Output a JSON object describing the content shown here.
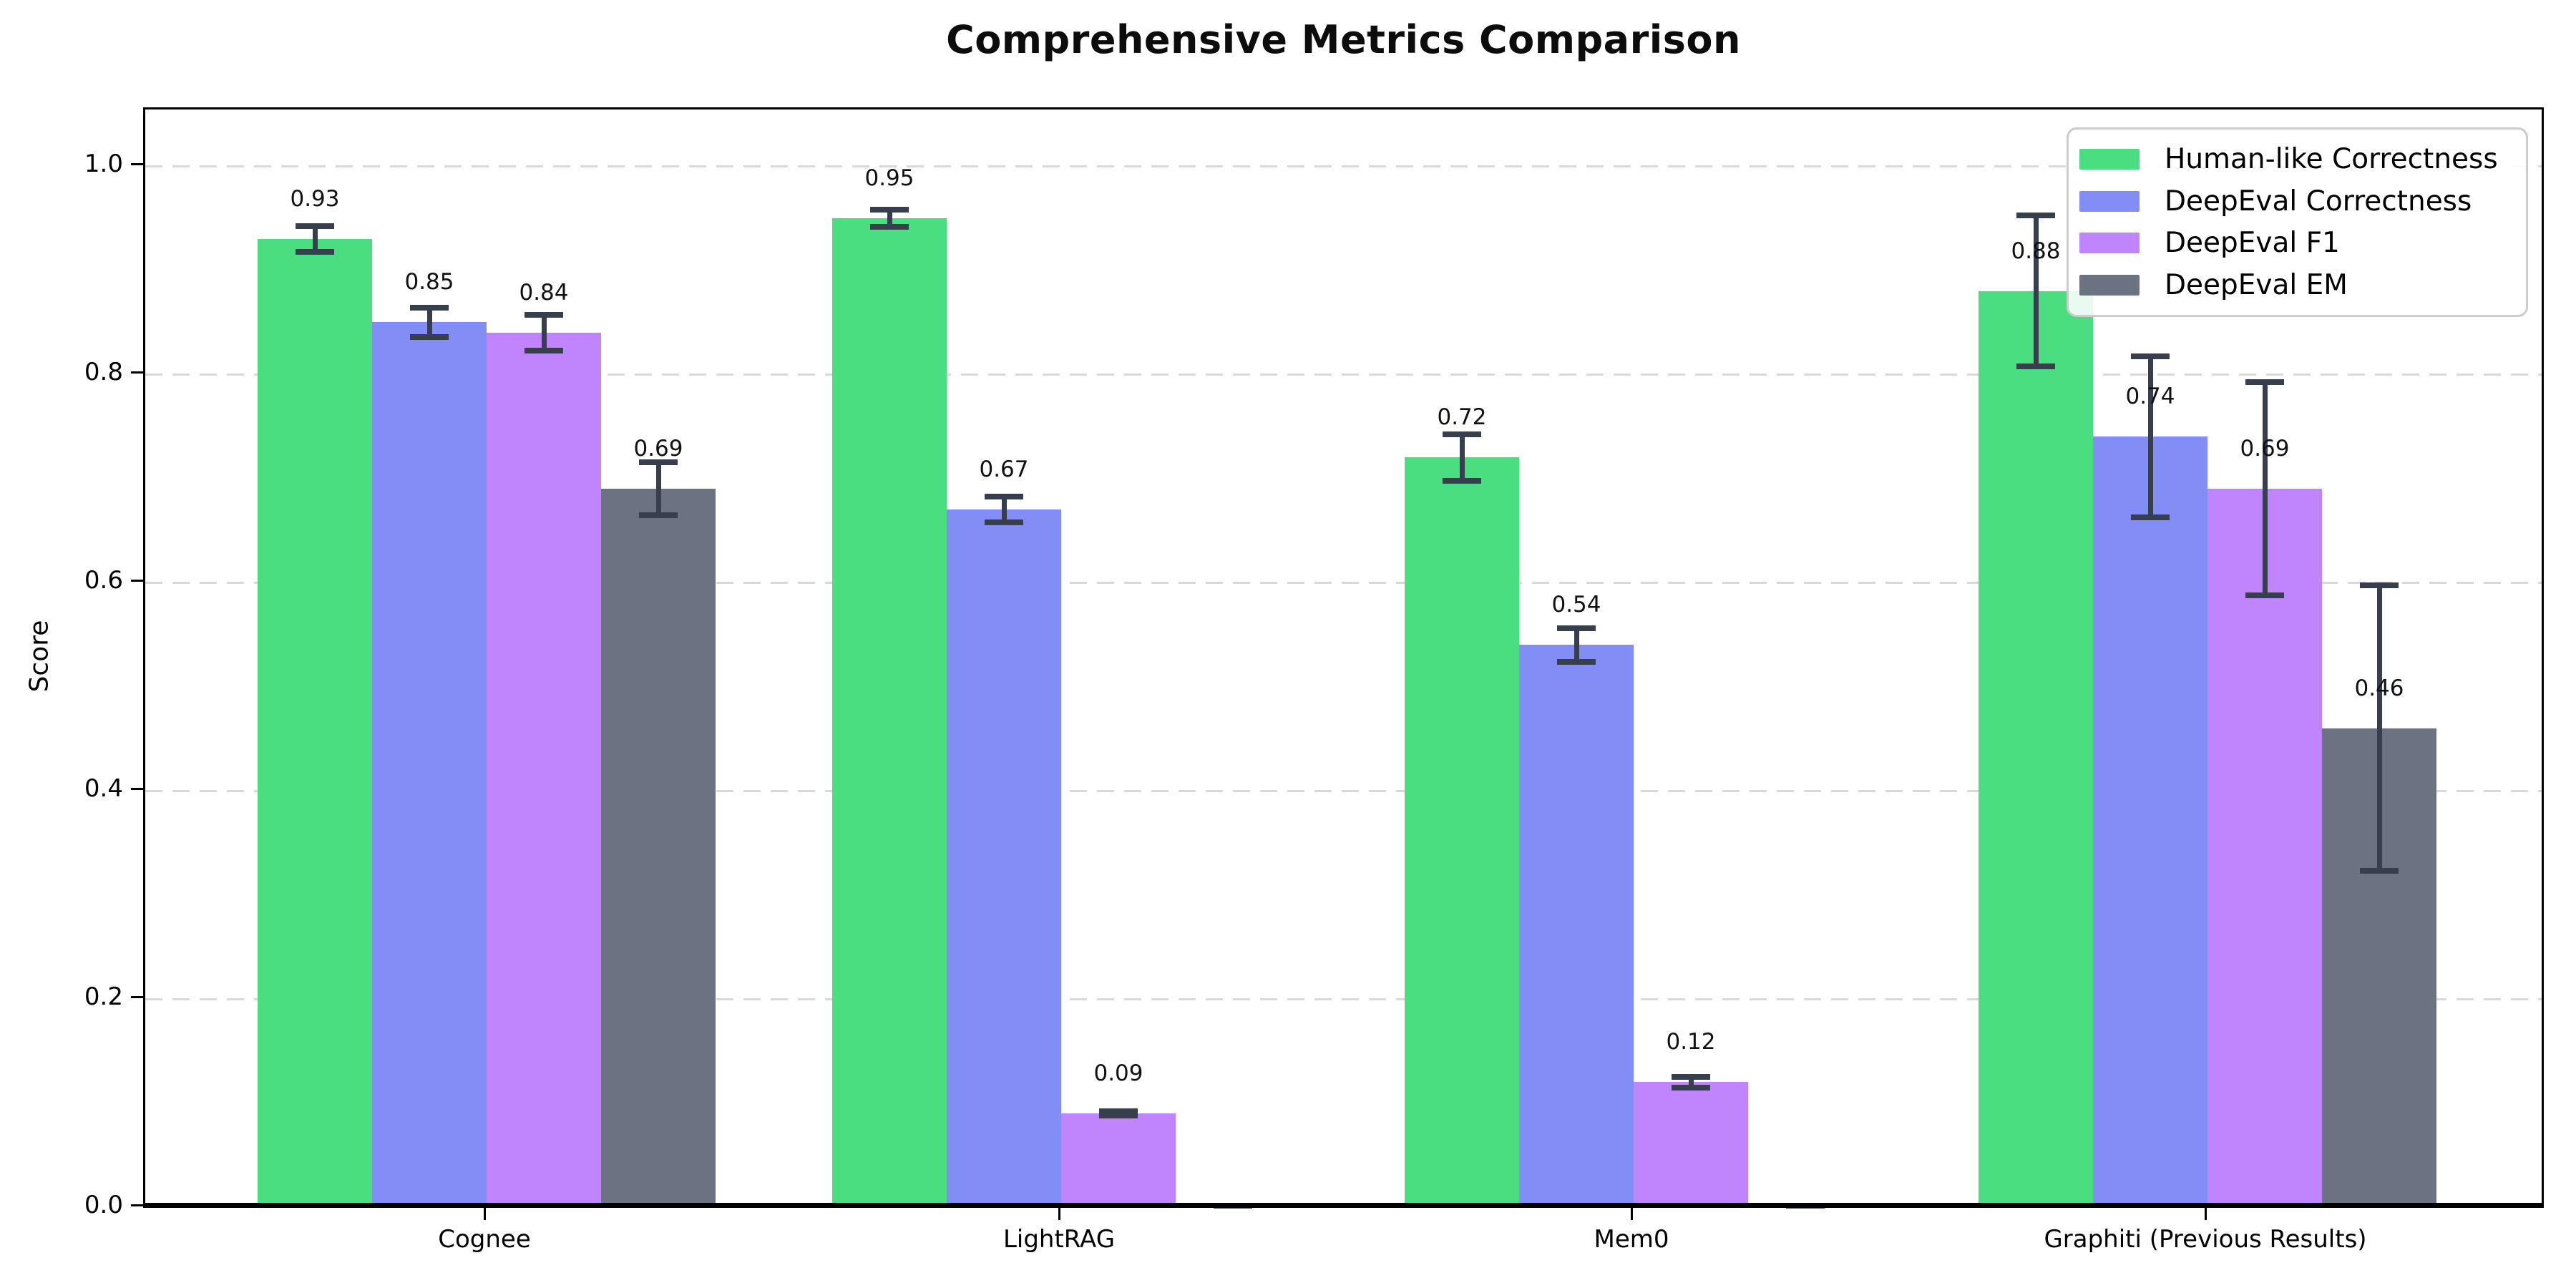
{
  "chart_data": {
    "type": "bar",
    "title": "Comprehensive Metrics Comparison",
    "ylabel": "Score",
    "xlabel": "",
    "ylim": [
      0,
      1.05
    ],
    "yticks": [
      0.0,
      0.2,
      0.4,
      0.6,
      0.8,
      1.0
    ],
    "ytick_labels": [
      "0.0",
      "0.2",
      "0.4",
      "0.6",
      "0.8",
      "1.0"
    ],
    "grid": "horizontal-dashed-at-0.2-steps",
    "legend_position": "upper-right",
    "background": "#ffffff",
    "error_bar_color": "#373f4e",
    "grid_color": "#d9d9d9",
    "categories": [
      "Cognee",
      "LightRAG",
      "Mem0",
      "Graphiti (Previous Results)"
    ],
    "series": [
      {
        "name": "Human-like Correctness",
        "color": "#4ade80",
        "values": [
          0.93,
          0.95,
          0.72,
          0.88
        ],
        "errors": [
          0.015,
          0.011,
          0.025,
          0.075
        ],
        "bar_labels": [
          "0.93",
          "0.95",
          "0.72",
          "0.88"
        ]
      },
      {
        "name": "DeepEval Correctness",
        "color": "#828df5",
        "values": [
          0.85,
          0.67,
          0.54,
          0.74
        ],
        "errors": [
          0.017,
          0.015,
          0.019,
          0.08
        ],
        "bar_labels": [
          "0.85",
          "0.67",
          "0.54",
          "0.74"
        ]
      },
      {
        "name": "DeepEval F1",
        "color": "#c084fc",
        "values": [
          0.84,
          0.09,
          0.12,
          0.69
        ],
        "errors": [
          0.02,
          0.005,
          0.008,
          0.105
        ],
        "bar_labels": [
          "0.84",
          "0.09",
          "0.12",
          "0.69"
        ]
      },
      {
        "name": "DeepEval EM",
        "color": "#6b7383",
        "values": [
          0.69,
          0.0,
          0.0,
          0.46
        ],
        "errors": [
          0.028,
          0.004,
          0.004,
          0.14
        ],
        "bar_labels": [
          "0.69",
          null,
          null,
          "0.46"
        ]
      }
    ]
  }
}
